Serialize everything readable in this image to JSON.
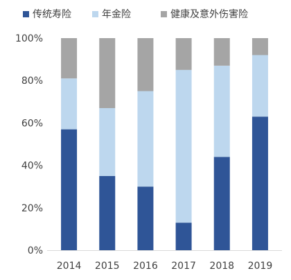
{
  "chart_data": {
    "type": "bar",
    "stacked": true,
    "categories": [
      "2014",
      "2015",
      "2016",
      "2017",
      "2018",
      "2019"
    ],
    "series": [
      {
        "name": "传统寿险",
        "color": "#2F5597",
        "values": [
          57,
          35,
          30,
          13,
          44,
          63
        ]
      },
      {
        "name": "年金险",
        "color": "#BDD7EE",
        "values": [
          24,
          32,
          45,
          72,
          43,
          29
        ]
      },
      {
        "name": "健康及意外伤害险",
        "color": "#A5A5A5",
        "values": [
          19,
          33,
          25,
          15,
          13,
          8
        ]
      }
    ],
    "yticks": [
      "0%",
      "20%",
      "40%",
      "60%",
      "80%",
      "100%"
    ],
    "ylim": [
      0,
      100
    ],
    "legend_position": "top",
    "grid": false
  }
}
